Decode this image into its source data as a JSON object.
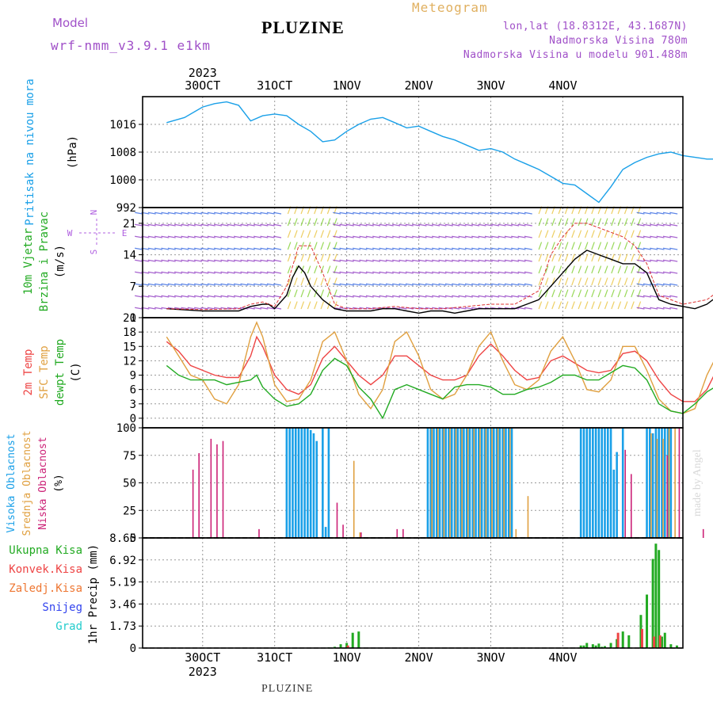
{
  "header": {
    "title": "PLUZINE",
    "model_label": "Model",
    "model_name": "wrf-nmm_v3.9.1 e1km",
    "meteogram_label": "Meteogram",
    "info_line1": "lon,lat (18.8312E, 43.1687N)",
    "info_line2": "Nadmorska Visina 780m",
    "info_line3": "Nadmorska Visina u modelu 901.488m"
  },
  "footer": {
    "location": "PLUZINE",
    "credit": "made by Angel"
  },
  "time_axis": {
    "year": "2023",
    "days": [
      "30OCT",
      "31OCT",
      "1NOV",
      "2NOV",
      "3NOV",
      "4NOV"
    ]
  },
  "panels": {
    "pressure": {
      "label_lines": [
        "Pritisak na nivou mora",
        "(hPa)"
      ],
      "label_colors": [
        "#1aa0e8",
        "#000000"
      ]
    },
    "wind": {
      "label_lines": [
        "10m Vjetar",
        "Brzina i Pravac",
        "(m/s)"
      ],
      "label_colors": [
        "#22aa22",
        "#22aa22",
        "#000000"
      ],
      "compass": [
        "N",
        "S",
        "W",
        "E"
      ],
      "compass_color": "#b060e0"
    },
    "temperature": {
      "label_lines": [
        "2m Temp",
        "SFC Temp",
        "dewpt Temp",
        "(C)"
      ],
      "label_colors": [
        "#ee4444",
        "#e0a040",
        "#22aa22",
        "#000000"
      ]
    },
    "cloud": {
      "label_lines": [
        "Visoka Oblacnost",
        "Srednja Oblacnost",
        "Niska Oblacnost",
        "(%)"
      ],
      "label_colors": [
        "#1aa0e8",
        "#e0a040",
        "#cc2277",
        "#000000"
      ]
    },
    "precip": {
      "label_lines": [
        "Ukupna Kisa",
        "Konvek.Kisa",
        "Zaledj.Kisa",
        "Snijeg",
        "Grad",
        "1hr Precip (mm)"
      ],
      "label_colors": [
        "#22aa22",
        "#ee4444",
        "#ee7733",
        "#3344ee",
        "#22cccc",
        "#000000"
      ]
    }
  },
  "chart_data": [
    {
      "type": "line",
      "panel": "pressure",
      "xlabel": "",
      "ylabel": "(hPa)",
      "x_unit": "hours since 30OCT 00UTC",
      "ylim": [
        992,
        1024
      ],
      "yticks": [
        1016,
        1008,
        1000,
        992
      ],
      "colors": [
        "#1aa0e8"
      ],
      "series": [
        {
          "x": [
            -12,
            -6,
            0,
            4,
            8,
            12,
            16,
            20,
            24,
            28,
            32,
            36,
            40,
            44,
            48,
            52,
            56,
            60,
            64,
            68,
            72,
            76,
            80,
            84,
            88,
            92,
            96,
            100,
            104,
            108,
            112,
            116,
            120,
            124,
            128,
            132,
            136,
            140,
            144,
            148,
            152,
            156,
            160,
            164,
            168,
            172
          ],
          "y": [
            1016.5,
            1018,
            1021,
            1022,
            1022.5,
            1021.5,
            1017,
            1018.5,
            1019,
            1018.5,
            1016,
            1014,
            1011,
            1011.5,
            1014,
            1016,
            1017.5,
            1018,
            1016.5,
            1015,
            1015.5,
            1014,
            1012.5,
            1011.5,
            1010,
            1008.5,
            1009,
            1008,
            1006,
            1004.5,
            1003,
            1001,
            999,
            998.5,
            996,
            993.5,
            998,
            1003,
            1005,
            1006.5,
            1007.5,
            1008,
            1007,
            1006.5,
            1006,
            1006
          ]
        }
      ]
    },
    {
      "type": "line",
      "panel": "wind",
      "xlabel": "",
      "ylabel": "(m/s)",
      "x_unit": "hours since 30OCT 00UTC",
      "ylim": [
        0,
        24.5
      ],
      "yticks": [
        0,
        7,
        14,
        21
      ],
      "colors": [
        "#000000",
        "#dd3333"
      ],
      "series": [
        {
          "name": "",
          "x": [
            -12,
            0,
            12,
            16,
            20,
            22,
            24,
            28,
            30,
            32,
            34,
            36,
            40,
            44,
            48,
            56,
            60,
            64,
            68,
            72,
            76,
            80,
            84,
            88,
            92,
            96,
            100,
            104,
            108,
            112,
            116,
            120,
            124,
            128,
            132,
            136,
            140,
            144,
            148,
            152,
            156,
            160,
            164,
            168,
            172
          ],
          "y": [
            2,
            1.5,
            1.5,
            2.5,
            3,
            3,
            2,
            5,
            9,
            11.5,
            10,
            7,
            4,
            2,
            1.5,
            1.5,
            2,
            2,
            1.5,
            1,
            1.5,
            1.5,
            1,
            1.5,
            2,
            2,
            2,
            2,
            3,
            4,
            7,
            10,
            13,
            15,
            14,
            13,
            12,
            12,
            10,
            4,
            3,
            2.5,
            2,
            3,
            5
          ]
        },
        {
          "name": "",
          "x": [
            -12,
            0,
            12,
            16,
            20,
            24,
            28,
            32,
            36,
            40,
            44,
            48,
            56,
            64,
            72,
            80,
            88,
            96,
            104,
            112,
            116,
            120,
            124,
            128,
            132,
            136,
            140,
            144,
            148,
            152,
            160,
            168,
            172
          ],
          "y": [
            2,
            1.8,
            2,
            3,
            3.5,
            2.5,
            7,
            16,
            16,
            10,
            3,
            2,
            2,
            2.5,
            2,
            2,
            2.5,
            3,
            3,
            6,
            14,
            18,
            21,
            21,
            20,
            19,
            18,
            16,
            12,
            5,
            3,
            4,
            6
          ]
        }
      ]
    },
    {
      "type": "line",
      "panel": "temperature",
      "xlabel": "",
      "ylabel": "(C)",
      "x_unit": "hours since 30OCT 00UTC",
      "ylim": [
        -2,
        21
      ],
      "yticks": [
        0,
        3,
        6,
        9,
        12,
        15,
        18,
        21
      ],
      "colors": [
        "#ee4444",
        "#e0a040",
        "#22aa22"
      ],
      "series": [
        {
          "name": "2m Temp",
          "x": [
            -12,
            -8,
            -4,
            0,
            4,
            8,
            12,
            16,
            18,
            20,
            24,
            28,
            32,
            36,
            40,
            44,
            48,
            52,
            56,
            60,
            64,
            68,
            72,
            76,
            80,
            84,
            88,
            92,
            96,
            100,
            104,
            108,
            112,
            116,
            120,
            124,
            128,
            132,
            136,
            140,
            144,
            148,
            152,
            156,
            160,
            164,
            168,
            172
          ],
          "y": [
            16,
            14,
            11,
            10,
            9,
            8.5,
            8.5,
            13,
            17,
            15,
            9,
            6,
            5,
            7,
            12.5,
            15,
            12,
            9,
            7,
            9,
            13,
            13,
            11,
            9,
            8,
            8,
            9,
            13,
            15.5,
            13,
            10,
            8,
            8.5,
            12,
            13,
            11.5,
            10,
            9.5,
            10,
            13.5,
            14,
            12,
            8,
            5,
            3.5,
            3.5,
            6,
            11
          ]
        },
        {
          "name": "SFC Temp",
          "x": [
            -12,
            -8,
            -4,
            0,
            4,
            8,
            12,
            16,
            18,
            20,
            24,
            28,
            32,
            36,
            40,
            44,
            48,
            52,
            56,
            60,
            64,
            68,
            72,
            76,
            80,
            84,
            88,
            92,
            96,
            100,
            104,
            108,
            112,
            116,
            120,
            124,
            128,
            132,
            136,
            140,
            144,
            148,
            152,
            156,
            160,
            164,
            168,
            172
          ],
          "y": [
            17,
            13,
            9,
            8,
            4,
            3,
            7,
            17,
            20,
            17,
            7,
            3.5,
            4,
            8,
            16,
            18,
            12,
            5,
            2,
            6,
            16,
            18,
            13,
            6,
            4,
            5,
            9,
            15,
            18,
            12,
            7,
            6,
            8,
            14,
            17,
            12,
            6,
            5.5,
            8,
            15,
            15,
            10,
            4,
            1.5,
            1,
            2,
            9,
            14
          ]
        },
        {
          "name": "dewpt Temp",
          "x": [
            -12,
            -8,
            -4,
            0,
            4,
            8,
            12,
            16,
            18,
            20,
            24,
            28,
            32,
            36,
            40,
            44,
            48,
            52,
            56,
            60,
            64,
            68,
            72,
            76,
            80,
            84,
            88,
            92,
            96,
            100,
            104,
            108,
            112,
            116,
            120,
            124,
            128,
            132,
            136,
            140,
            144,
            148,
            152,
            156,
            160,
            164,
            168,
            172
          ],
          "y": [
            11,
            9,
            8,
            8,
            8,
            7,
            7.5,
            8,
            9,
            6.5,
            4,
            2.5,
            3,
            5,
            10,
            12.5,
            11,
            6.5,
            4,
            0,
            6,
            7,
            6,
            5,
            4,
            6.5,
            7,
            7,
            6.5,
            5,
            5,
            6,
            6.5,
            7.5,
            9,
            9,
            8,
            8,
            9.5,
            11,
            10.5,
            8,
            3,
            1.5,
            1,
            3,
            5.5,
            7
          ]
        }
      ]
    },
    {
      "type": "bar",
      "panel": "cloud",
      "xlabel": "",
      "ylabel": "(%)",
      "x_unit": "hours since 30OCT 00UTC",
      "ylim": [
        0,
        100
      ],
      "yticks": [
        0,
        25,
        50,
        75,
        100
      ],
      "colors": [
        "#1aa0e8",
        "#e0a040",
        "#cc2277"
      ],
      "series": [
        {
          "name": "Visoka Oblacnost",
          "x": [
            28,
            29,
            30,
            31,
            32,
            33,
            34,
            35,
            36,
            37,
            38,
            39,
            40,
            41,
            42,
            75,
            76,
            77,
            78,
            79,
            80,
            81,
            82,
            83,
            84,
            85,
            86,
            87,
            88,
            89,
            90,
            91,
            92,
            93,
            94,
            95,
            96,
            97,
            98,
            99,
            100,
            101,
            102,
            103,
            126,
            127,
            128,
            129,
            130,
            131,
            132,
            133,
            134,
            135,
            136,
            137,
            138,
            139,
            140,
            148,
            149,
            150,
            151,
            152,
            153,
            154,
            155,
            156
          ],
          "y": [
            100,
            100,
            100,
            100,
            100,
            100,
            100,
            100,
            98,
            95,
            88,
            0,
            100,
            10,
            100,
            100,
            100,
            100,
            100,
            100,
            100,
            100,
            100,
            100,
            100,
            100,
            100,
            100,
            100,
            100,
            100,
            100,
            100,
            100,
            100,
            100,
            100,
            100,
            100,
            100,
            100,
            100,
            100,
            100,
            100,
            100,
            100,
            100,
            100,
            100,
            100,
            100,
            100,
            100,
            100,
            62,
            78,
            0,
            100,
            100,
            100,
            95,
            100,
            100,
            100,
            100,
            100,
            100
          ]
        },
        {
          "name": "Srednja Oblacnost",
          "x": [
            50,
            52,
            76,
            78,
            80,
            82,
            84,
            86,
            88,
            90,
            92,
            94,
            96,
            98,
            100,
            102,
            104,
            108,
            149,
            151,
            153,
            155,
            157
          ],
          "y": [
            70,
            5,
            100,
            100,
            100,
            100,
            100,
            100,
            100,
            100,
            100,
            100,
            100,
            100,
            100,
            100,
            8,
            38,
            95,
            90,
            90,
            100,
            100
          ]
        },
        {
          "name": "Niska Oblacnost",
          "x": [
            -4,
            -2,
            2,
            4,
            6,
            18,
            44,
            46,
            52,
            64,
            66,
            140,
            142,
            154,
            158,
            166,
            170
          ],
          "y": [
            62,
            77,
            90,
            85,
            88,
            8,
            32,
            12,
            5,
            8,
            8,
            80,
            58,
            75,
            100,
            8,
            8
          ]
        }
      ]
    },
    {
      "type": "bar",
      "panel": "precip",
      "xlabel": "",
      "ylabel": "1hr Precip (mm)",
      "x_unit": "hours since 30OCT 00UTC",
      "ylim": [
        0,
        8.65
      ],
      "yticks": [
        0,
        1.73,
        3.46,
        5.19,
        6.92,
        8.65
      ],
      "colors": [
        "#22aa22",
        "#ee4444"
      ],
      "series": [
        {
          "name": "Ukupna Kisa",
          "x": [
            42,
            44,
            46,
            48,
            50,
            52,
            126,
            127,
            128,
            130,
            131,
            132,
            133,
            134,
            136,
            138,
            140,
            142,
            146,
            148,
            150,
            151,
            152,
            153,
            154,
            156,
            158
          ],
          "y": [
            0.05,
            0.1,
            0.3,
            0.4,
            1.2,
            1.3,
            0.2,
            0.2,
            0.4,
            0.3,
            0.2,
            0.35,
            0.1,
            0.15,
            0.4,
            0.7,
            1.3,
            1.0,
            2.6,
            4.2,
            7.0,
            8.2,
            7.7,
            0.9,
            1.2,
            0.3,
            0.2
          ]
        },
        {
          "name": "Konvek.Kisa",
          "x": [
            48,
            138,
            146,
            150,
            152
          ],
          "y": [
            0.2,
            1.2,
            1.5,
            0.9,
            1.0
          ]
        }
      ]
    }
  ]
}
